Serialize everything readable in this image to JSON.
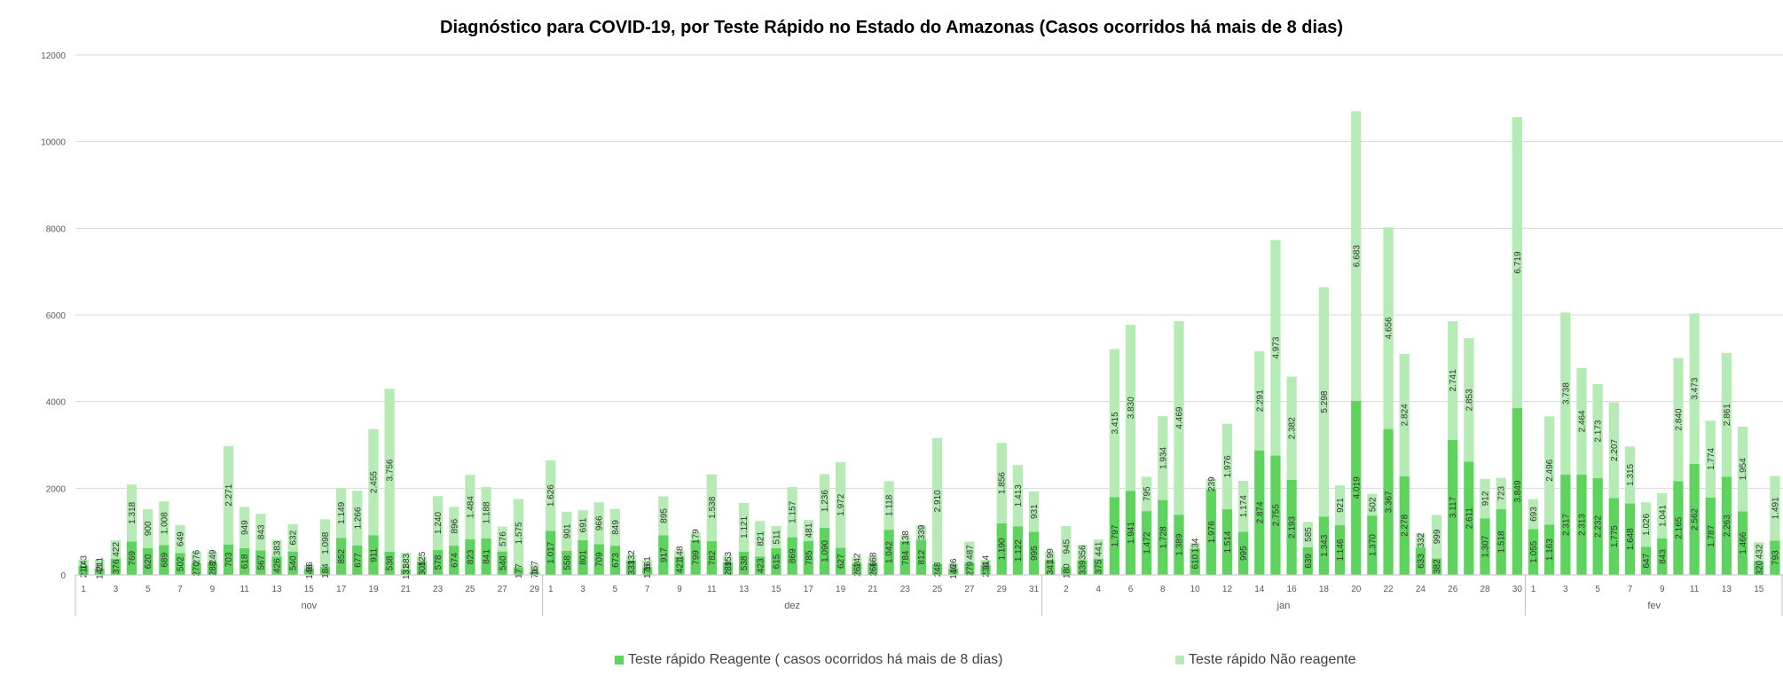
{
  "chart_data": {
    "type": "bar",
    "stacked": true,
    "title": "Diagnóstico para COVID-19, por  Teste Rápido no Estado do Amazonas (Casos ocorridos há mais de 8 dias)",
    "ylim": [
      0,
      12000
    ],
    "y_ticks": [
      "0",
      "2000",
      "4000",
      "6000",
      "8000",
      "10000",
      "12000"
    ],
    "grid": true,
    "legend_position": "bottom",
    "colors": {
      "reagente": "#5ed35e",
      "nao_reagente": "#b6ebb6",
      "grid": "#d9d9d9",
      "axis": "#bfbfbf",
      "text": "#595959"
    },
    "months": [
      {
        "label": "nov",
        "days": [
          1,
          2,
          3,
          4,
          5,
          6,
          7,
          8,
          9,
          10,
          11,
          12,
          13,
          14,
          15,
          16,
          17,
          18,
          19,
          20,
          21,
          22,
          23,
          24,
          25,
          26,
          27,
          28,
          29
        ]
      },
      {
        "label": "dez",
        "days": [
          1,
          2,
          3,
          4,
          5,
          6,
          7,
          8,
          9,
          10,
          11,
          12,
          13,
          14,
          15,
          16,
          17,
          18,
          19,
          20,
          21,
          22,
          23,
          24,
          25,
          26,
          27,
          28,
          29,
          30,
          31
        ]
      },
      {
        "label": "jan",
        "days": [
          1,
          2,
          3,
          4,
          5,
          6,
          7,
          8,
          9,
          10,
          11,
          12,
          13,
          14,
          15,
          16,
          17,
          18,
          19,
          20,
          21,
          22,
          23,
          24,
          25,
          26,
          27,
          28,
          29,
          30
        ]
      },
      {
        "label": "fev",
        "days": [
          1,
          2,
          3,
          4,
          5,
          6,
          7,
          8,
          9,
          10,
          11,
          12,
          13,
          14,
          15,
          16
        ]
      }
    ],
    "x_tick_labels": {
      "nov": [
        1,
        3,
        5,
        7,
        9,
        11,
        13,
        15,
        17,
        19,
        21,
        23,
        25,
        27,
        29
      ],
      "dez": [
        1,
        3,
        5,
        7,
        9,
        11,
        13,
        15,
        17,
        19,
        21,
        23,
        25,
        27,
        29,
        31
      ],
      "jan": [
        2,
        4,
        6,
        8,
        10,
        12,
        14,
        16,
        18,
        20,
        22,
        24,
        26,
        28,
        30
      ],
      "fev": [
        1,
        3,
        5,
        7,
        9,
        11,
        13,
        15
      ]
    },
    "series": [
      {
        "name": "Teste rápido Reagente ( casos ocorridos há mais de 8 dias)",
        "values": [
          210,
          143,
          376,
          769,
          620,
          689,
          502,
          270,
          288,
          703,
          618,
          567,
          426,
          540,
          146,
          184,
          852,
          677,
          911,
          538,
          131,
          305,
          578,
          674,
          823,
          841,
          540,
          177,
          71,
          1017,
          558,
          801,
          709,
          673,
          333,
          176,
          917,
          421,
          799,
          782,
          289,
          538,
          423,
          615,
          869,
          785,
          1090,
          627,
          262,
          266,
          1042,
          784,
          812,
          248,
          146,
          279,
          234,
          1190,
          1122,
          995,
          341,
          180,
          339,
          375,
          1797,
          1941,
          1472,
          1728,
          1389,
          610,
          1976,
          1514,
          995,
          2874,
          2755,
          2193,
          639,
          1343,
          1146,
          4019,
          1370,
          3367,
          2278,
          633,
          382,
          3117,
          2611,
          1307,
          1518,
          3849,
          1055,
          1163,
          2317,
          2313,
          2232,
          1775,
          1648,
          647,
          843,
          2165,
          2562,
          1787,
          2263,
          1466,
          320,
          793
        ]
      },
      {
        "name": "Teste rápido Não reagente",
        "values": [
          143,
          211,
          422,
          1318,
          900,
          1008,
          649,
          276,
          249,
          2271,
          949,
          843,
          383,
          632,
          86,
          1098,
          1149,
          1266,
          2455,
          3756,
          383,
          125,
          1240,
          896,
          1484,
          1188,
          576,
          1575,
          167,
          1626,
          901,
          691,
          966,
          849,
          132,
          161,
          895,
          148,
          179,
          1538,
          153,
          1121,
          821,
          511,
          1157,
          481,
          1236,
          1972,
          142,
          168,
          1118,
          138,
          339,
          2910,
          126,
          487,
          114,
          1856,
          1413,
          931,
          199,
          945,
          356,
          441,
          3415,
          3830,
          795,
          1934,
          4469,
          134,
          239,
          1976,
          1174,
          2291,
          4973,
          2382,
          585,
          5298,
          921,
          6683,
          502,
          4656,
          2824,
          332,
          999,
          2741,
          2853,
          912,
          723,
          6719,
          693,
          2496,
          3738,
          2464,
          2173,
          2207,
          1315,
          1026,
          1041,
          2840,
          3473,
          1774,
          2861,
          1954,
          432,
          1491
        ]
      }
    ]
  },
  "legend": {
    "item1": "Teste rápido Reagente ( casos ocorridos há mais de 8 dias)",
    "item2": "Teste rápido Não reagente"
  }
}
